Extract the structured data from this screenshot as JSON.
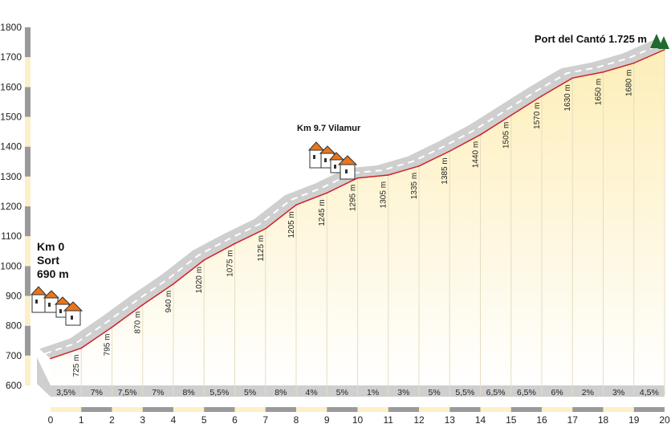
{
  "chart_data": {
    "type": "area",
    "title": "",
    "xlabel": "",
    "ylabel": "",
    "xlim": [
      0,
      20
    ],
    "ylim": [
      600,
      1800
    ],
    "y_ticks": [
      "600",
      "700",
      "800",
      "900",
      "1000",
      "1100",
      "1200",
      "1300",
      "1400",
      "1500",
      "1600",
      "1700",
      "1800"
    ],
    "x_ticks": [
      "0",
      "1",
      "2",
      "3",
      "4",
      "5",
      "6",
      "7",
      "8",
      "9",
      "10",
      "11",
      "12",
      "13",
      "14",
      "15",
      "16",
      "17",
      "18",
      "19",
      "20"
    ],
    "x": [
      0,
      1,
      2,
      3,
      4,
      5,
      6,
      7,
      8,
      9,
      10,
      11,
      12,
      13,
      14,
      15,
      16,
      17,
      18,
      19,
      20
    ],
    "elevation": [
      690,
      725,
      795,
      870,
      940,
      1020,
      1075,
      1125,
      1205,
      1245,
      1295,
      1305,
      1335,
      1385,
      1440,
      1505,
      1570,
      1630,
      1650,
      1680,
      1725
    ],
    "point_labels": [
      "725 m",
      "795 m",
      "870 m",
      "940 m",
      "1020 m",
      "1075 m",
      "1125 m",
      "1205 m",
      "1245 m",
      "1295 m",
      "1305 m",
      "1335 m",
      "1385 m",
      "1440 m",
      "1505 m",
      "1570 m",
      "1630 m",
      "1650 m",
      "1680 m"
    ],
    "gradients": [
      "3,5%",
      "7%",
      "7,5%",
      "7%",
      "8%",
      "5,5%",
      "5%",
      "8%",
      "4%",
      "5%",
      "1%",
      "3%",
      "5%",
      "5,5%",
      "6,5%",
      "6,5%",
      "6%",
      "2%",
      "3%",
      "4,5%"
    ],
    "colors": {
      "profile_line": "#d0202a",
      "road_band": "#cfcfcf",
      "fill_top": "#fdf0c0",
      "fill_bottom": "#ffffff",
      "axis_dark": "#9a9a9a",
      "axis_light": "#fdf0c8",
      "roof": "#e8761c",
      "tree": "#1f6b2e"
    },
    "annotations": {
      "start_km": "Km 0",
      "start_place": "Sort",
      "start_alt": "690 m",
      "mid": "Km 9.7 Vilamur",
      "summit": "Port del Cantó 1.725 m"
    }
  }
}
